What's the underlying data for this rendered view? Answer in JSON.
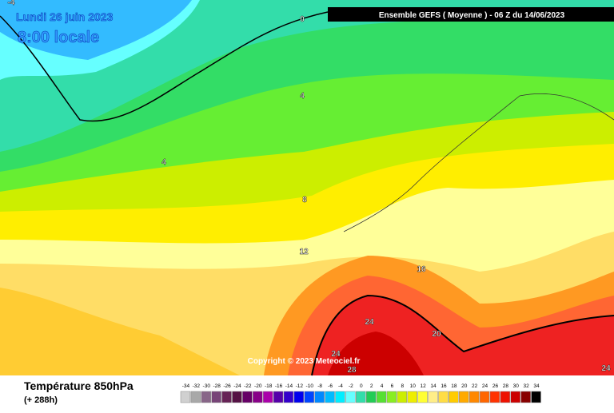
{
  "header": {
    "date": "Lundi 26 juin 2023",
    "time": "8:00 locale",
    "run": "Ensemble GEFS  ( Moyenne )  - 06 Z du 14/06/2023"
  },
  "map": {
    "copyright": "Copyright © 2023 Meteociel.fr",
    "contour_labels": [
      "-4",
      "0",
      "4",
      "4",
      "8",
      "12",
      "16",
      "20",
      "24",
      "24",
      "28",
      "24"
    ]
  },
  "footer": {
    "title": "Température 850hPa",
    "lead": "(+ 288h)"
  },
  "legend": {
    "labels": [
      -34,
      -32,
      -30,
      -28,
      -26,
      -24,
      -22,
      -20,
      -18,
      -16,
      -14,
      -12,
      -10,
      -8,
      -6,
      -4,
      -2,
      0,
      2,
      4,
      6,
      8,
      10,
      12,
      14,
      16,
      18,
      20,
      22,
      24,
      26,
      28,
      30,
      32,
      34
    ],
    "colors": [
      "#d0d0d0",
      "#a8a8a8",
      "#886688",
      "#774477",
      "#662255",
      "#551144",
      "#660066",
      "#880088",
      "#aa00aa",
      "#5500aa",
      "#3300cc",
      "#0000ee",
      "#0044ff",
      "#0088ff",
      "#00bbff",
      "#00eeff",
      "#66ffff",
      "#33ddaa",
      "#22cc55",
      "#55e033",
      "#88ee22",
      "#ccee00",
      "#eeee00",
      "#ffff33",
      "#ffee88",
      "#ffdd44",
      "#ffcc00",
      "#ffaa00",
      "#ff8800",
      "#ff6600",
      "#ff3300",
      "#ee1100",
      "#cc0000",
      "#880000",
      "#000000"
    ]
  }
}
